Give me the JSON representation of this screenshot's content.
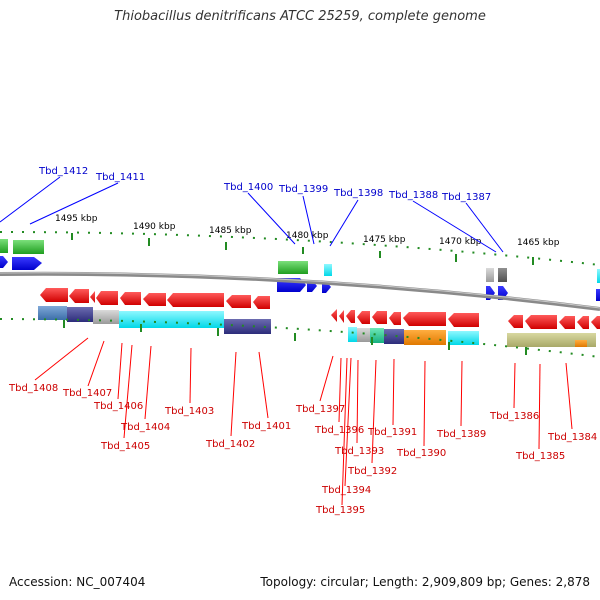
{
  "title": "Thiobacillus denitrificans ATCC 25259, complete genome",
  "accession": "Accession: NC_007404",
  "summary": "Topology: circular; Length: 2,909,809 bp; Genes: 2,878",
  "colors": {
    "forward_gene": "#0000ff",
    "reverse_gene": "#ff0000",
    "backbone": "#808080",
    "forward_label": "#0000cc",
    "reverse_label": "#cc0000",
    "tick": "#228b22"
  },
  "scale_labels": [
    "1495 kbp",
    "1490 kbp",
    "1485 kbp",
    "1480 kbp",
    "1475 kbp",
    "1470 kbp",
    "1465 kbp"
  ],
  "forward_labels": [
    "Tbd_1412",
    "Tbd_1411",
    "Tbd_1400",
    "Tbd_1399",
    "Tbd_1398",
    "Tbd_1388",
    "Tbd_1387"
  ],
  "reverse_labels": [
    "Tbd_1408",
    "Tbd_1407",
    "Tbd_1406",
    "Tbd_1405",
    "Tbd_1404",
    "Tbd_1403",
    "Tbd_1402",
    "Tbd_1401",
    "Tbd_1397",
    "Tbd_1396",
    "Tbd_1393",
    "Tbd_1394",
    "Tbd_1395",
    "Tbd_1392",
    "Tbd_1391",
    "Tbd_1390",
    "Tbd_1389",
    "Tbd_1386",
    "Tbd_1385",
    "Tbd_1384"
  ]
}
